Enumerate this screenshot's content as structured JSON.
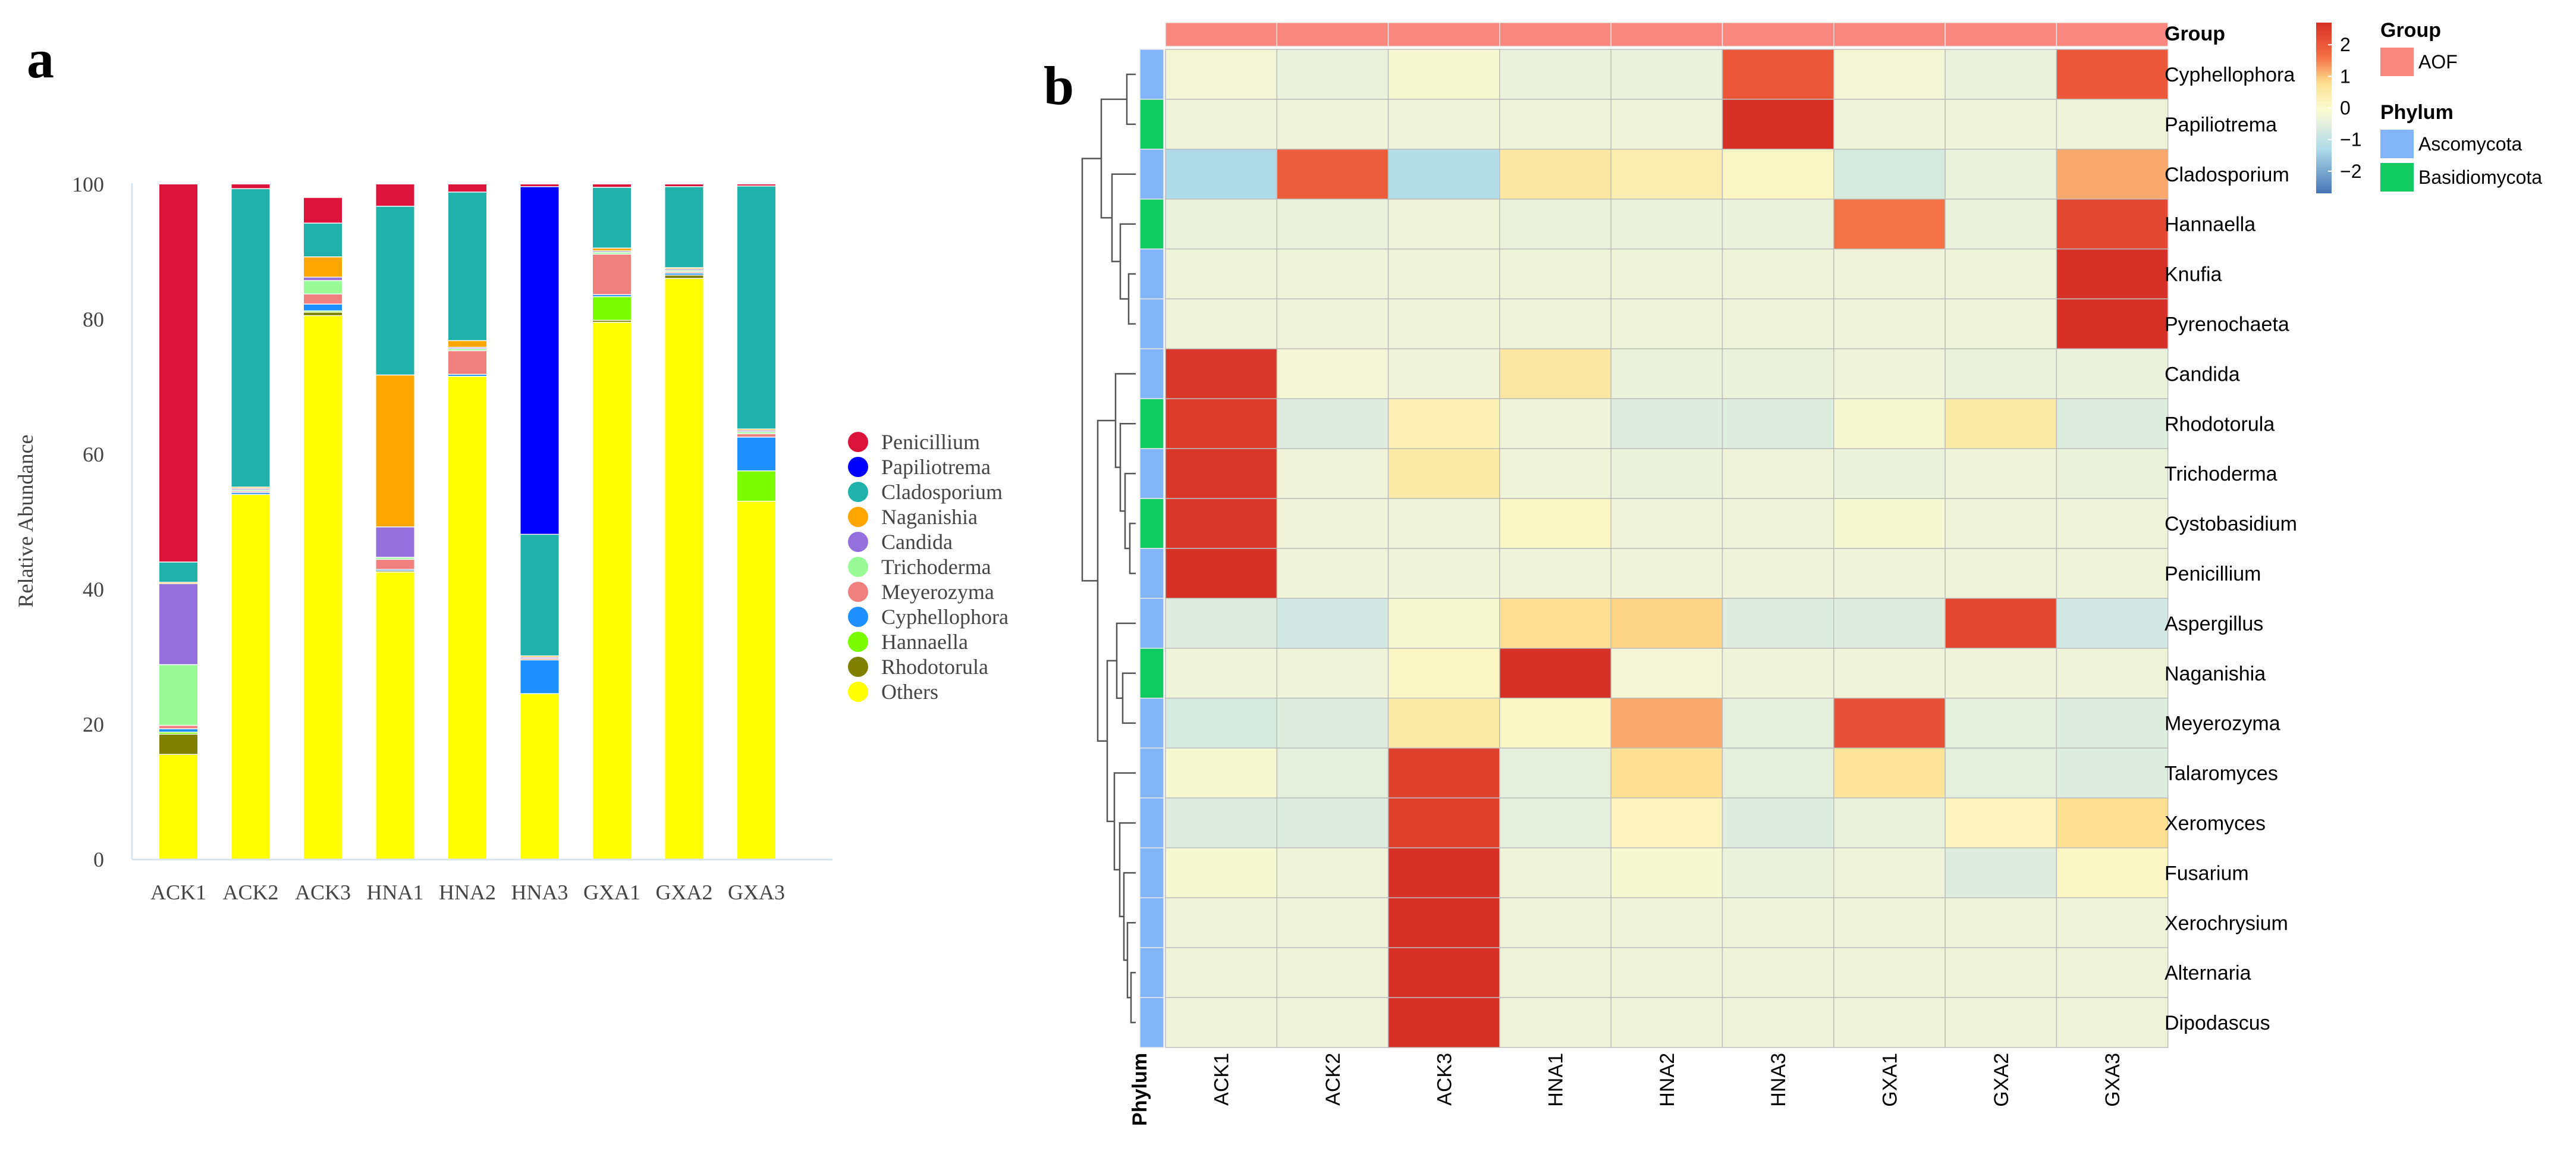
{
  "panel_a_label": "a",
  "panel_b_label": "b",
  "colors": {
    "Penicillium": "#DC143C",
    "Papiliotrema": "#0000FF",
    "Cladosporium": "#20B2AA",
    "Naganishia": "#FFA500",
    "Candida": "#9370DB",
    "Trichoderma": "#98FB98",
    "Meyerozyma": "#F08080",
    "Cyphellophora": "#1E90FF",
    "Hannaella": "#7CFC00",
    "Rhodotorula": "#808000",
    "Others": "#FFFF00",
    "group_aof": "#F8877F",
    "ascomycota": "#82B4F8",
    "basidiomycota": "#0FCB61"
  },
  "chart_data": [
    {
      "type": "bar",
      "stacked": true,
      "title": "",
      "xlabel": "",
      "ylabel": "Relative Abundance",
      "ylim": [
        0,
        100
      ],
      "yticks": [
        "0",
        "20",
        "40",
        "60",
        "80",
        "100"
      ],
      "categories": [
        "ACK1",
        "ACK2",
        "ACK3",
        "HNA1",
        "HNA2",
        "HNA3",
        "GXA1",
        "GXA2",
        "GXA3"
      ],
      "legend": [
        "Penicillium",
        "Papiliotrema",
        "Cladosporium",
        "Naganishia",
        "Candida",
        "Trichoderma",
        "Meyerozyma",
        "Cyphellophora",
        "Hannaella",
        "Rhodotorula",
        "Others"
      ],
      "series": [
        {
          "name": "Others",
          "values": [
            15.5,
            54.0,
            80.5,
            42.5,
            71.5,
            24.5,
            79.5,
            86.0,
            53.0
          ]
        },
        {
          "name": "Rhodotorula",
          "values": [
            3.0,
            0.0,
            0.5,
            0.2,
            0.0,
            0.0,
            0.3,
            0.5,
            0.0
          ]
        },
        {
          "name": "Hannaella",
          "values": [
            0.3,
            0.0,
            0.2,
            0.0,
            0.0,
            0.0,
            3.5,
            0.0,
            4.5
          ]
        },
        {
          "name": "Cyphellophora",
          "values": [
            0.5,
            0.3,
            1.0,
            0.2,
            0.3,
            5.0,
            0.3,
            0.3,
            5.0
          ]
        },
        {
          "name": "Meyerozyma",
          "values": [
            0.5,
            0.2,
            1.5,
            1.5,
            3.5,
            0.2,
            6.0,
            0.2,
            0.5
          ]
        },
        {
          "name": "Trichoderma",
          "values": [
            9.0,
            0.2,
            2.0,
            0.3,
            0.3,
            0.0,
            0.3,
            0.2,
            0.3
          ]
        },
        {
          "name": "Candida",
          "values": [
            12.0,
            0.2,
            0.5,
            4.5,
            0.2,
            0.2,
            0.2,
            0.2,
            0.2
          ]
        },
        {
          "name": "Naganishia",
          "values": [
            0.2,
            0.2,
            3.0,
            22.5,
            1.0,
            0.2,
            0.4,
            0.2,
            0.2
          ]
        },
        {
          "name": "Cladosporium",
          "values": [
            3.0,
            44.2,
            5.0,
            25.0,
            22.0,
            18.0,
            9.0,
            12.0,
            36.0
          ]
        },
        {
          "name": "Papiliotrema",
          "values": [
            0.0,
            0.0,
            0.0,
            0.0,
            0.0,
            51.5,
            0.0,
            0.0,
            0.0
          ]
        },
        {
          "name": "Penicillium",
          "values": [
            56.0,
            0.7,
            3.8,
            3.3,
            1.2,
            0.4,
            0.5,
            0.4,
            0.3
          ]
        }
      ]
    },
    {
      "type": "heatmap",
      "title": "",
      "columns": [
        "ACK1",
        "ACK2",
        "ACK3",
        "HNA1",
        "HNA2",
        "HNA3",
        "GXA1",
        "GXA2",
        "GXA3"
      ],
      "rows": [
        "Cyphellophora",
        "Papiliotrema",
        "Cladosporium",
        "Hannaella",
        "Knufia",
        "Pyrenochaeta",
        "Candida",
        "Rhodotorula",
        "Trichoderma",
        "Cystobasidium",
        "Penicillium",
        "Aspergillus",
        "Naganishia",
        "Meyerozyma",
        "Talaromyces",
        "Xeromyces",
        "Fusarium",
        "Xerochrysium",
        "Alternaria",
        "Dipodascus"
      ],
      "row_phylum": [
        "Ascomycota",
        "Basidiomycota",
        "Ascomycota",
        "Basidiomycota",
        "Ascomycota",
        "Ascomycota",
        "Ascomycota",
        "Basidiomycota",
        "Ascomycota",
        "Basidiomycota",
        "Ascomycota",
        "Ascomycota",
        "Basidiomycota",
        "Ascomycota",
        "Ascomycota",
        "Ascomycota",
        "Ascomycota",
        "Ascomycota",
        "Ascomycota",
        "Ascomycota"
      ],
      "values": [
        [
          -0.2,
          -0.4,
          -0.1,
          -0.4,
          -0.4,
          2.0,
          -0.2,
          -0.4,
          2.0
        ],
        [
          -0.3,
          -0.3,
          -0.3,
          -0.3,
          -0.3,
          2.7,
          -0.3,
          -0.3,
          -0.3
        ],
        [
          -1.3,
          1.9,
          -1.2,
          0.6,
          0.4,
          0.1,
          -0.7,
          -0.4,
          1.2
        ],
        [
          -0.4,
          -0.4,
          -0.3,
          -0.4,
          -0.4,
          -0.4,
          1.6,
          -0.4,
          2.3
        ],
        [
          -0.3,
          -0.3,
          -0.3,
          -0.3,
          -0.3,
          -0.3,
          -0.3,
          -0.3,
          2.7
        ],
        [
          -0.3,
          -0.3,
          -0.3,
          -0.3,
          -0.3,
          -0.3,
          -0.3,
          -0.3,
          2.7
        ],
        [
          2.6,
          -0.2,
          -0.3,
          0.6,
          -0.4,
          -0.4,
          -0.3,
          -0.4,
          -0.4
        ],
        [
          2.5,
          -0.6,
          0.3,
          -0.3,
          -0.6,
          -0.6,
          -0.1,
          0.5,
          -0.6
        ],
        [
          2.6,
          -0.3,
          0.5,
          -0.3,
          -0.4,
          -0.3,
          -0.4,
          -0.3,
          -0.4
        ],
        [
          2.6,
          -0.3,
          -0.3,
          0.1,
          -0.3,
          -0.3,
          -0.1,
          -0.3,
          -0.3
        ],
        [
          2.7,
          -0.3,
          -0.3,
          -0.3,
          -0.3,
          -0.3,
          -0.3,
          -0.3,
          -0.3
        ],
        [
          -0.6,
          -0.8,
          -0.1,
          0.8,
          0.9,
          -0.6,
          -0.6,
          2.3,
          -0.8
        ],
        [
          -0.3,
          -0.3,
          0.1,
          2.7,
          -0.2,
          -0.3,
          -0.3,
          -0.3,
          -0.3
        ],
        [
          -0.7,
          -0.6,
          0.5,
          0.1,
          1.2,
          -0.5,
          2.1,
          -0.5,
          -0.6
        ],
        [
          -0.1,
          -0.5,
          2.4,
          -0.5,
          0.8,
          -0.5,
          0.7,
          -0.5,
          -0.6
        ],
        [
          -0.6,
          -0.6,
          2.4,
          -0.5,
          0.2,
          -0.6,
          -0.4,
          0.2,
          0.8
        ],
        [
          -0.1,
          -0.3,
          2.7,
          -0.3,
          -0.1,
          -0.4,
          -0.3,
          -0.6,
          0.1
        ],
        [
          -0.3,
          -0.3,
          2.7,
          -0.3,
          -0.3,
          -0.3,
          -0.3,
          -0.3,
          -0.3
        ],
        [
          -0.3,
          -0.3,
          2.7,
          -0.3,
          -0.3,
          -0.3,
          -0.3,
          -0.3,
          -0.3
        ],
        [
          -0.3,
          -0.3,
          2.7,
          -0.3,
          -0.3,
          -0.3,
          -0.3,
          -0.3,
          -0.3
        ]
      ],
      "color_range": [
        -2.7,
        2.7
      ],
      "colorbar_ticks": [
        "2",
        "1",
        "0",
        "−1",
        "−2"
      ],
      "annotation": {
        "group_header": "Group",
        "phylum_header": "Phylum",
        "legend_group_title": "Group",
        "legend_group_entry": "AOF",
        "legend_phylum_title": "Phylum",
        "legend_phylum_entries": [
          "Ascomycota",
          "Basidiomycota"
        ]
      }
    }
  ]
}
